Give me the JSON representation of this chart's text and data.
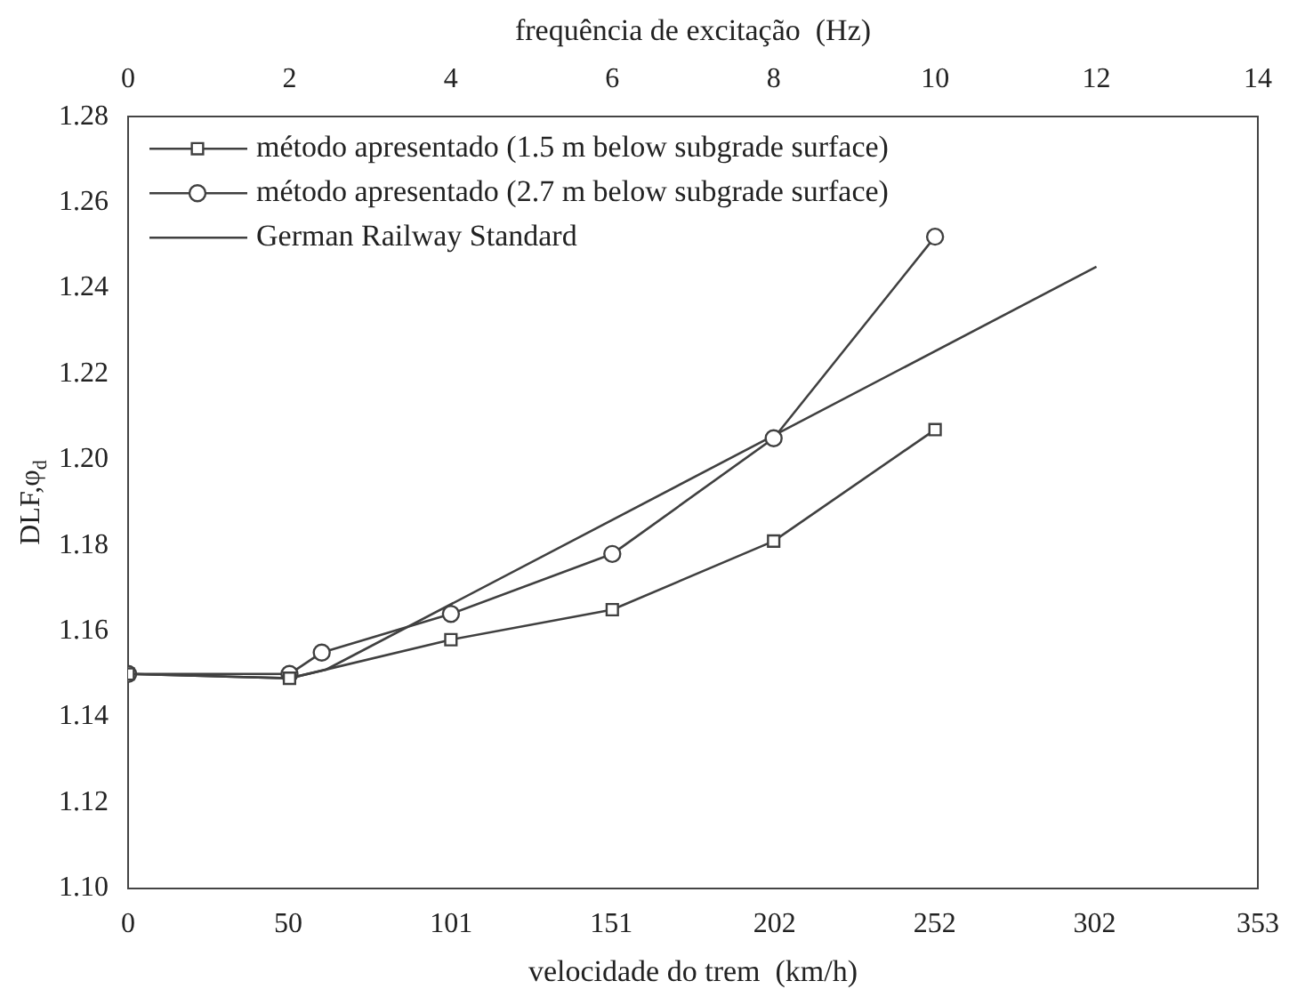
{
  "chart_data": {
    "type": "line",
    "xlabel": "velocidade do trem  (km/h)",
    "x2label": "frequência de excitação  (Hz)",
    "ylabel": "DLF,φ$_{d}$",
    "xlim": [
      0,
      353
    ],
    "xticks": [
      0,
      50,
      101,
      151,
      202,
      252,
      302,
      353
    ],
    "x2lim": [
      0,
      14
    ],
    "x2ticks": [
      0,
      2,
      4,
      6,
      8,
      10,
      12,
      14
    ],
    "ylim": [
      1.1,
      1.28
    ],
    "yticks": [
      {
        "value": 1.1,
        "label": "1.10"
      },
      1.12,
      1.14,
      1.16,
      1.18,
      {
        "value": 1.2,
        "label": "1.20"
      },
      1.22,
      1.24,
      1.26,
      1.28
    ],
    "legend": "top left",
    "grid": false,
    "series": [
      {
        "name": "método apresentado (1.5 m below subgrade surface)",
        "color": "#404040",
        "marker": "square",
        "x": [
          0,
          50.43,
          100.86,
          151.29,
          201.71,
          252.14
        ],
        "values": [
          1.15,
          1.149,
          1.158,
          1.165,
          1.181,
          1.207
        ]
      },
      {
        "name": "método apresentado (2.7 m below subgrade surface)",
        "color": "#404040",
        "marker": "circle",
        "x": [
          0,
          50.43,
          60.5,
          100.86,
          151.29,
          201.71,
          252.14
        ],
        "values": [
          1.15,
          1.15,
          1.155,
          1.164,
          1.178,
          1.205,
          1.252
        ]
      },
      {
        "name": "German Railway Standard",
        "color": "#404040",
        "marker": "none",
        "x": [
          0,
          50.43,
          61.8,
          302.57
        ],
        "values": [
          1.15,
          1.149,
          1.151,
          1.245
        ]
      }
    ]
  }
}
